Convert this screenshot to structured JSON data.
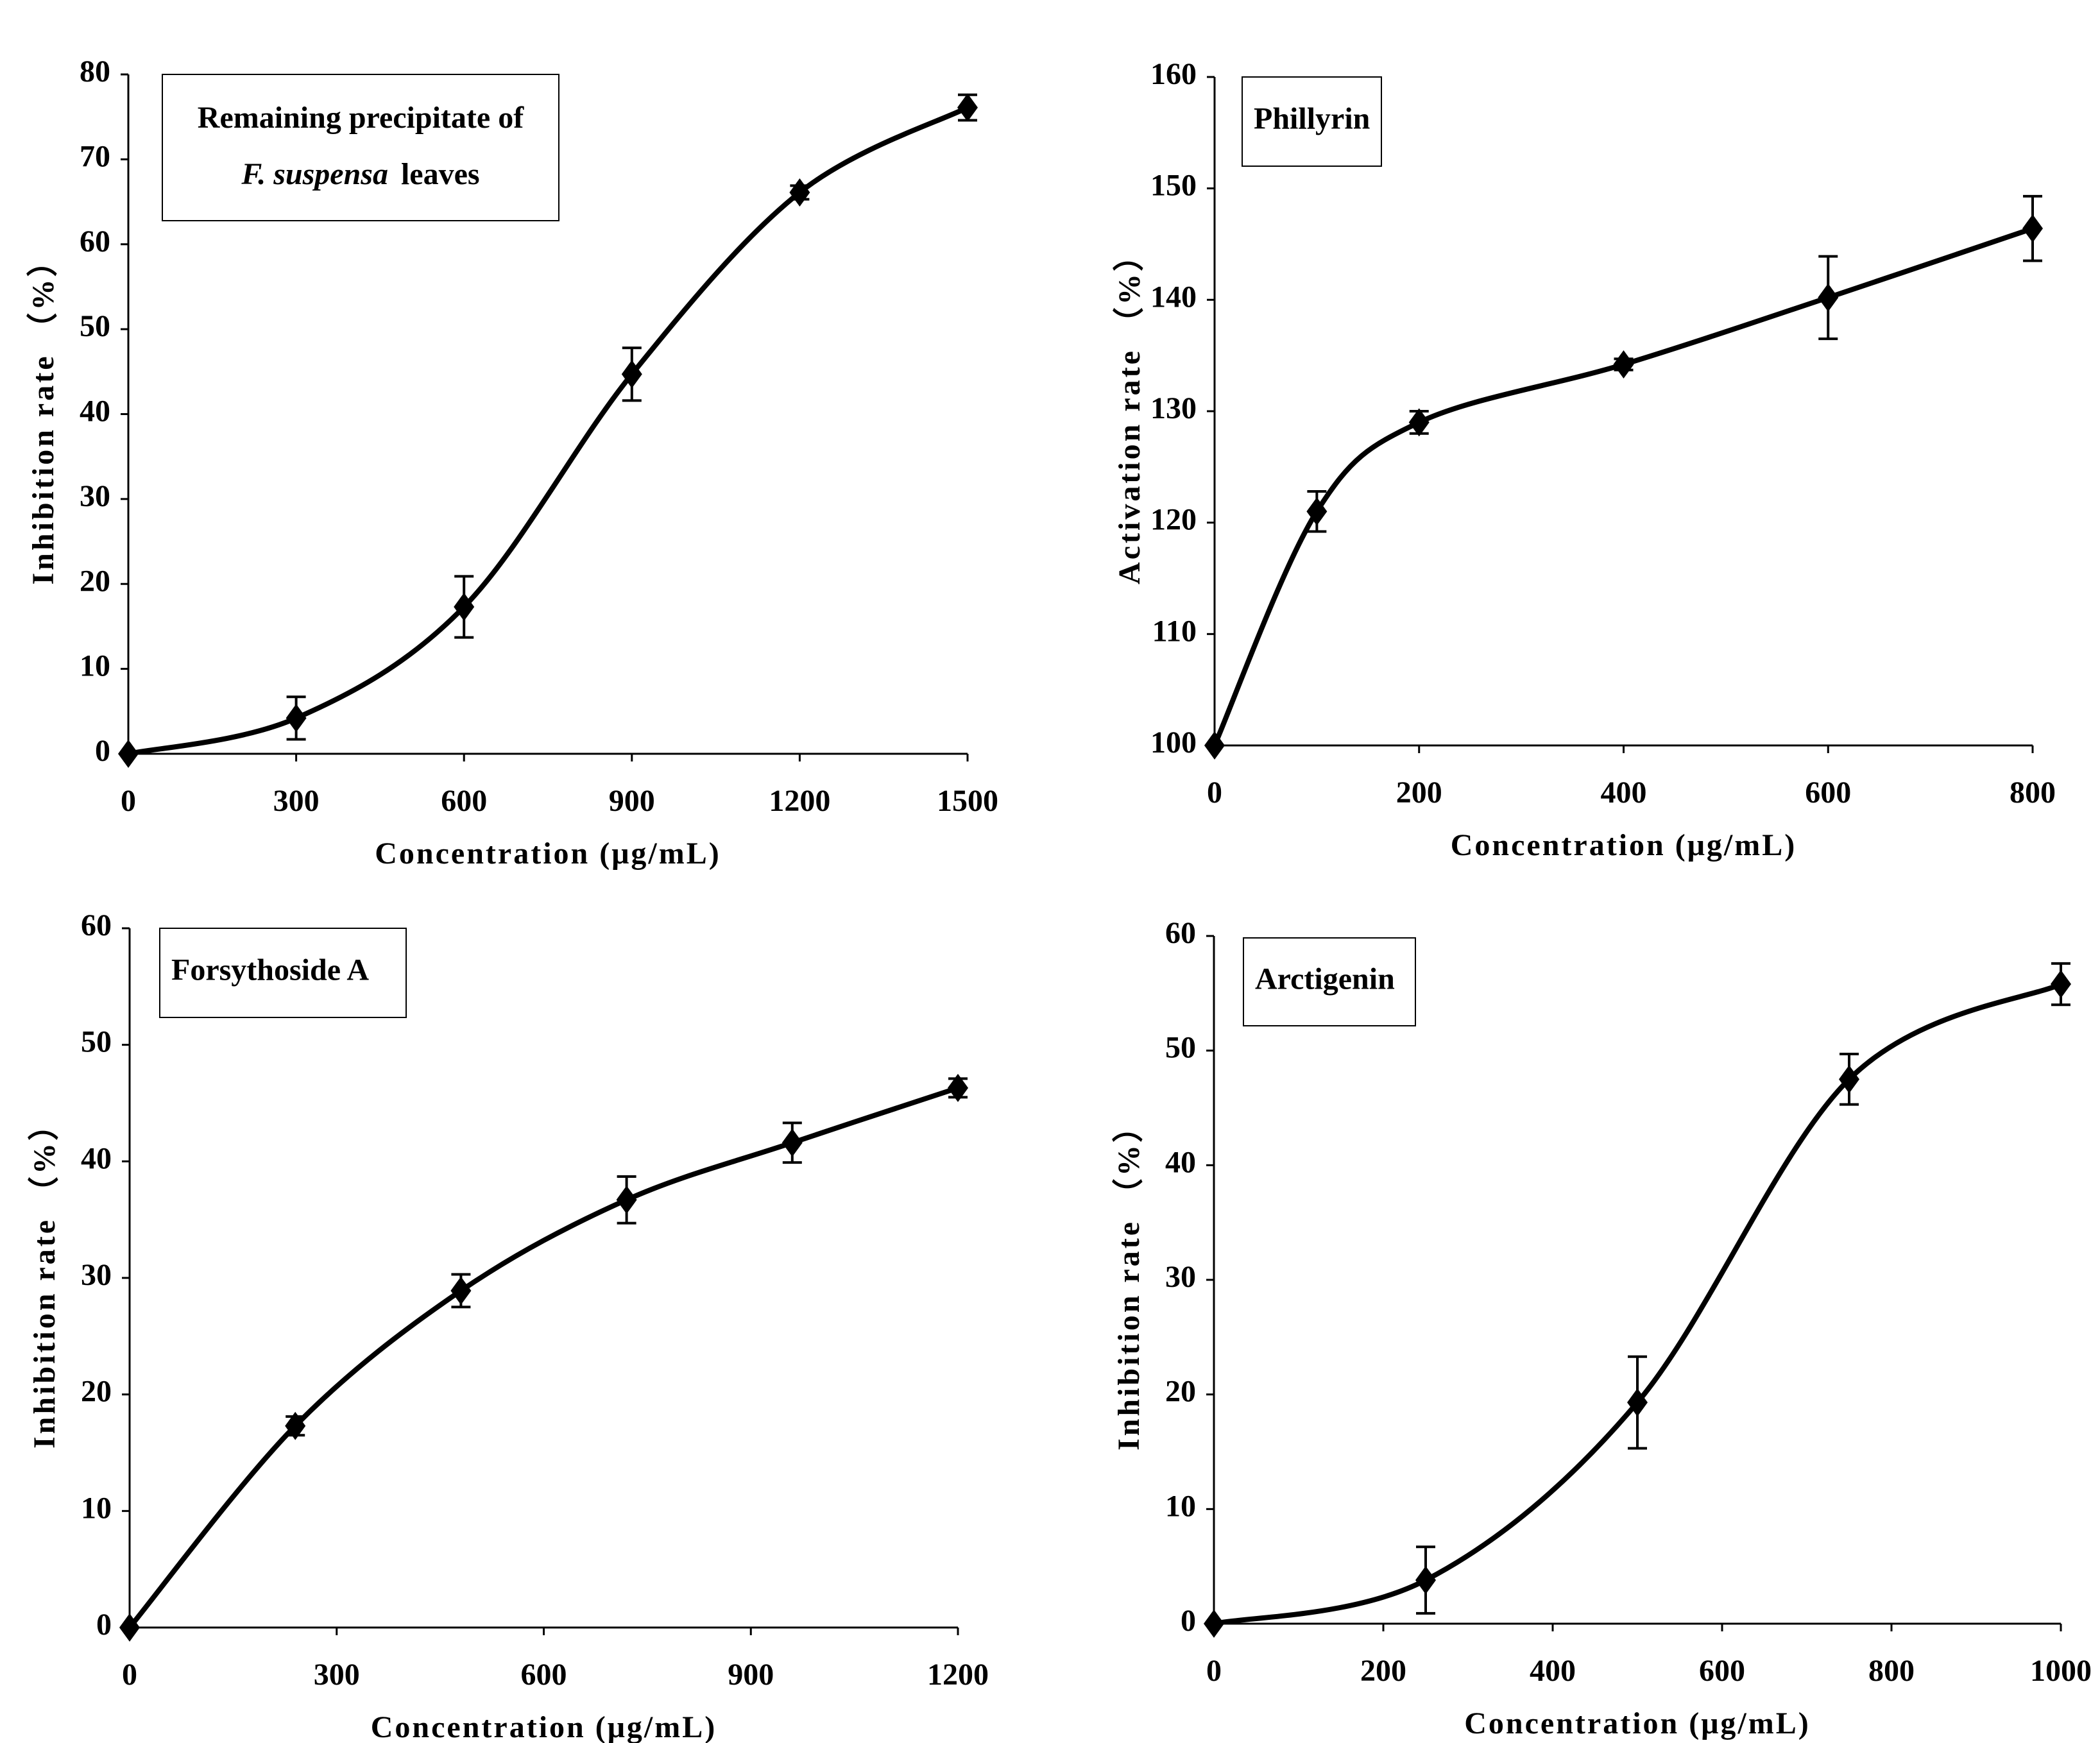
{
  "chart_data": [
    {
      "type": "line",
      "title": [
        "Remaining precipitate of",
        "F. suspensa",
        "leaves"
      ],
      "x_label": "Concentration (μg/mL)",
      "y_label": "Inhibition rate （%）",
      "x": [
        0,
        300,
        600,
        900,
        1200,
        1500
      ],
      "values": [
        0,
        4.2,
        17.3,
        44.7,
        66.1,
        76.1
      ],
      "errors": [
        0,
        2.5,
        3.6,
        3.1,
        0.8,
        1.5
      ],
      "xlim": [
        0,
        1500
      ],
      "xticks": [
        0,
        300,
        600,
        900,
        1200,
        1500
      ],
      "ylim": [
        0,
        80
      ],
      "yticks": [
        0,
        10,
        20,
        30,
        40,
        50,
        60,
        70,
        80
      ],
      "color": "#000000"
    },
    {
      "type": "line",
      "title": [
        "Phillyrin"
      ],
      "x_label": "Concentration (μg/mL)",
      "y_label": "Activation rate （%）",
      "x": [
        0,
        100,
        200,
        400,
        600,
        800
      ],
      "values": [
        100,
        121,
        129,
        134.2,
        140.2,
        146.4
      ],
      "errors": [
        0,
        1.8,
        1,
        0.5,
        3.7,
        2.9
      ],
      "xlim": [
        0,
        800
      ],
      "xticks": [
        0,
        200,
        400,
        600,
        800
      ],
      "ylim": [
        100,
        160
      ],
      "yticks": [
        100,
        110,
        120,
        130,
        140,
        150,
        160
      ],
      "color": "#000000"
    },
    {
      "type": "line",
      "title": [
        "Forsythoside A"
      ],
      "x_label": "Concentration (μg/mL)",
      "y_label": "Inhibition rate （%）",
      "x": [
        0,
        240,
        480,
        720,
        960,
        1200
      ],
      "values": [
        0,
        17.3,
        28.9,
        36.7,
        41.6,
        46.3
      ],
      "errors": [
        0,
        0.8,
        1.4,
        2,
        1.7,
        0.8
      ],
      "xlim": [
        0,
        1200
      ],
      "xticks": [
        0,
        300,
        600,
        900,
        1200
      ],
      "ylim": [
        0,
        60
      ],
      "yticks": [
        0,
        10,
        20,
        30,
        40,
        50,
        60
      ],
      "color": "#000000"
    },
    {
      "type": "line",
      "title": [
        "Arctigenin"
      ],
      "x_label": "Concentration (μg/mL)",
      "y_label": "Inhibition rate （%）",
      "x": [
        0,
        250,
        500,
        750,
        1000
      ],
      "values": [
        0,
        3.8,
        19.3,
        47.5,
        55.8
      ],
      "errors": [
        0,
        2.9,
        4,
        2.2,
        1.8
      ],
      "xlim": [
        0,
        1000
      ],
      "xticks": [
        0,
        200,
        400,
        600,
        800,
        1000
      ],
      "ylim": [
        0,
        60
      ],
      "yticks": [
        0,
        10,
        20,
        30,
        40,
        50,
        60
      ],
      "color": "#000000"
    }
  ]
}
